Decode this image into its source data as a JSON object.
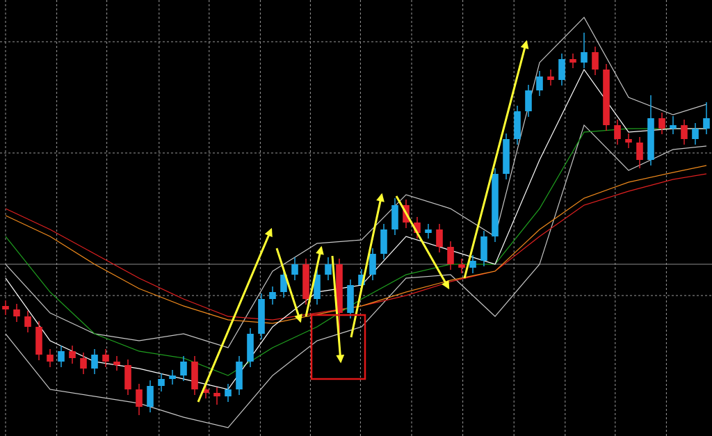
{
  "chart_data": {
    "type": "candlestick",
    "up_color": "#1fa8e6",
    "down_color": "#e3212b",
    "grid": true,
    "ylim": [
      0,
      627
    ],
    "xlim": [
      -0.5,
      63.5
    ],
    "yticks": [
      567,
      407,
      202
    ],
    "xticks": [
      0,
      4.6,
      9.1,
      13.8,
      18.3,
      22.9,
      27.4,
      31.9,
      36.5,
      41.1,
      45.7,
      50.3,
      54.8,
      59.4
    ],
    "price_line": 247,
    "open": [
      187,
      182,
      172,
      157,
      117,
      107,
      122,
      112,
      97,
      117,
      107,
      102,
      67,
      42,
      72,
      82,
      87,
      107,
      67,
      62,
      57,
      67,
      107,
      147,
      197,
      207,
      232,
      247,
      197,
      232,
      247,
      177,
      217,
      232,
      262,
      297,
      332,
      307,
      292,
      297,
      272,
      247,
      242,
      252,
      287,
      377,
      427,
      467,
      497,
      517,
      512,
      542,
      537,
      552,
      527,
      447,
      427,
      422,
      397,
      457,
      442,
      447,
      427,
      442
    ],
    "high": [
      195,
      190,
      180,
      165,
      125,
      130,
      130,
      120,
      125,
      125,
      115,
      110,
      75,
      80,
      90,
      95,
      115,
      115,
      75,
      70,
      75,
      115,
      155,
      205,
      215,
      240,
      257,
      255,
      240,
      257,
      255,
      225,
      240,
      270,
      305,
      342,
      340,
      315,
      305,
      305,
      280,
      255,
      260,
      295,
      385,
      435,
      475,
      505,
      525,
      527,
      550,
      550,
      580,
      560,
      535,
      455,
      435,
      430,
      490,
      465,
      460,
      455,
      450,
      480
    ],
    "low": [
      174,
      164,
      149,
      109,
      99,
      99,
      104,
      89,
      89,
      99,
      94,
      59,
      30,
      34,
      64,
      74,
      79,
      59,
      54,
      45,
      49,
      59,
      99,
      139,
      189,
      199,
      224,
      189,
      189,
      224,
      137,
      169,
      209,
      224,
      254,
      289,
      299,
      284,
      284,
      264,
      239,
      234,
      234,
      244,
      279,
      369,
      419,
      459,
      489,
      504,
      504,
      529,
      529,
      519,
      439,
      419,
      414,
      385,
      389,
      434,
      434,
      419,
      419,
      434
    ],
    "close": [
      182,
      172,
      157,
      117,
      107,
      122,
      112,
      97,
      117,
      107,
      102,
      67,
      42,
      72,
      82,
      87,
      107,
      67,
      62,
      57,
      67,
      107,
      147,
      197,
      207,
      232,
      247,
      197,
      232,
      247,
      177,
      217,
      232,
      262,
      297,
      332,
      307,
      292,
      297,
      272,
      247,
      242,
      252,
      287,
      377,
      427,
      467,
      497,
      517,
      512,
      542,
      537,
      552,
      527,
      447,
      427,
      422,
      397,
      457,
      442,
      447,
      427,
      442,
      457
    ],
    "line_x": [
      0,
      4,
      8,
      12,
      16,
      20,
      24,
      28,
      32,
      36,
      40,
      44,
      48,
      52,
      56,
      60,
      63
    ],
    "series": [
      {
        "color": "#c8c8c8",
        "values": [
          247,
          177,
          147,
          137,
          147,
          127,
          237,
          277,
          282,
          347,
          327,
          287,
          537,
          602,
          487,
          462,
          477
        ]
      },
      {
        "color": "#c8c8c8",
        "values": [
          147,
          67,
          57,
          47,
          27,
          12,
          87,
          137,
          157,
          227,
          232,
          172,
          247,
          447,
          382,
          412,
          417
        ]
      },
      {
        "color": "#e02020",
        "values": [
          327,
          297,
          262,
          227,
          197,
          172,
          167,
          177,
          187,
          202,
          222,
          237,
          287,
          332,
          352,
          369,
          377
        ]
      },
      {
        "color": "#f08a1c",
        "values": [
          317,
          287,
          247,
          212,
          187,
          167,
          162,
          175,
          187,
          207,
          224,
          237,
          297,
          342,
          365,
          379,
          389
        ]
      },
      {
        "color": "#1fa01f",
        "values": [
          287,
          207,
          147,
          122,
          112,
          87,
          127,
          157,
          197,
          232,
          247,
          247,
          327,
          437,
          442,
          442,
          442
        ]
      },
      {
        "color": "#ffffff",
        "values": [
          227,
          137,
          107,
          97,
          82,
          67,
          157,
          207,
          217,
          287,
          267,
          247,
          397,
          527,
          437,
          442,
          442
        ]
      }
    ]
  }
}
